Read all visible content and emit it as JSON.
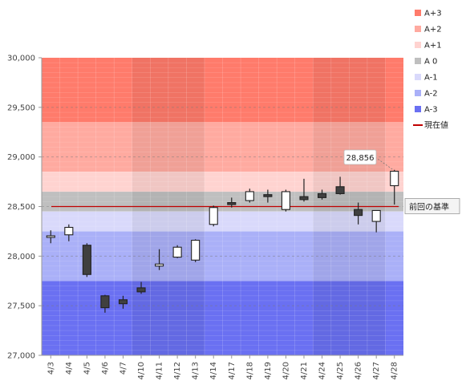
{
  "chart_data": {
    "type": "candlestick",
    "categories": [
      "4/3",
      "4/4",
      "4/5",
      "4/6",
      "4/7",
      "4/10",
      "4/11",
      "4/12",
      "4/13",
      "4/14",
      "4/17",
      "4/18",
      "4/19",
      "4/20",
      "4/21",
      "4/24",
      "4/25",
      "4/26",
      "4/27",
      "4/28"
    ],
    "ohlc": [
      {
        "open": 28190,
        "high": 28260,
        "low": 28130,
        "close": 28205
      },
      {
        "open": 28215,
        "high": 28320,
        "low": 28150,
        "close": 28290
      },
      {
        "open": 28110,
        "high": 28130,
        "low": 27790,
        "close": 27815
      },
      {
        "open": 27600,
        "high": 27610,
        "low": 27430,
        "close": 27480
      },
      {
        "open": 27560,
        "high": 27600,
        "low": 27470,
        "close": 27520
      },
      {
        "open": 27680,
        "high": 27740,
        "low": 27620,
        "close": 27640
      },
      {
        "open": 27900,
        "high": 28070,
        "low": 27860,
        "close": 27920
      },
      {
        "open": 27990,
        "high": 28110,
        "low": 27980,
        "close": 28090
      },
      {
        "open": 27960,
        "high": 28170,
        "low": 27940,
        "close": 28160
      },
      {
        "open": 28320,
        "high": 28510,
        "low": 28300,
        "close": 28490
      },
      {
        "open": 28540,
        "high": 28590,
        "low": 28490,
        "close": 28520
      },
      {
        "open": 28560,
        "high": 28680,
        "low": 28540,
        "close": 28650
      },
      {
        "open": 28620,
        "high": 28670,
        "low": 28540,
        "close": 28600
      },
      {
        "open": 28470,
        "high": 28670,
        "low": 28450,
        "close": 28650
      },
      {
        "open": 28600,
        "high": 28780,
        "low": 28550,
        "close": 28570
      },
      {
        "open": 28630,
        "high": 28670,
        "low": 28570,
        "close": 28590
      },
      {
        "open": 28700,
        "high": 28800,
        "low": 28620,
        "close": 28630
      },
      {
        "open": 28470,
        "high": 28540,
        "low": 28320,
        "close": 28410
      },
      {
        "open": 28350,
        "high": 28460,
        "low": 28240,
        "close": 28460
      },
      {
        "open": 28710,
        "high": 28870,
        "low": 28520,
        "close": 28856
      }
    ],
    "ylim": [
      27000,
      30000
    ],
    "yticks": [
      27000,
      27500,
      28000,
      28500,
      29000,
      29500,
      30000
    ],
    "ytick_labels": [
      "27,000",
      "27,500",
      "28,000",
      "28,500",
      "29,000",
      "29,500",
      "30,000"
    ],
    "bands": [
      {
        "name": "A+3",
        "from": 29350,
        "to": 30000,
        "color": "#ff7b6b"
      },
      {
        "name": "A+2",
        "from": 28850,
        "to": 29350,
        "color": "#ffaaa0"
      },
      {
        "name": "A+1",
        "from": 28650,
        "to": 28850,
        "color": "#ffd3d0"
      },
      {
        "name": "A 0",
        "from": 28450,
        "to": 28650,
        "color": "#bfbfbf"
      },
      {
        "name": "A-1",
        "from": 28250,
        "to": 28450,
        "color": "#d9d9fb"
      },
      {
        "name": "A-2",
        "from": 27750,
        "to": 28250,
        "color": "#aab0f8"
      },
      {
        "name": "A-3",
        "from": 27000,
        "to": 27750,
        "color": "#6a70f2"
      }
    ],
    "shaded_weeks": [
      [
        5,
        9
      ],
      [
        15,
        19
      ]
    ],
    "reference_line": {
      "name": "前回の基準",
      "value": 28500,
      "color": "#c00000"
    },
    "current_value": {
      "name": "現在値",
      "value": 28856,
      "label": "28,856"
    },
    "legend": {
      "placement": "right",
      "items": [
        {
          "label": "A+3",
          "color": "#ff7b6b",
          "kind": "box"
        },
        {
          "label": "A+2",
          "color": "#ffaaa0",
          "kind": "box"
        },
        {
          "label": "A+1",
          "color": "#ffd3d0",
          "kind": "box"
        },
        {
          "label": "A 0",
          "color": "#bfbfbf",
          "kind": "box"
        },
        {
          "label": "A-1",
          "color": "#d9d9fb",
          "kind": "box"
        },
        {
          "label": "A-2",
          "color": "#aab0f8",
          "kind": "box"
        },
        {
          "label": "A-3",
          "color": "#6a70f2",
          "kind": "box"
        },
        {
          "label": "現在値",
          "color": "#c00000",
          "kind": "line"
        }
      ]
    },
    "grid": true
  }
}
